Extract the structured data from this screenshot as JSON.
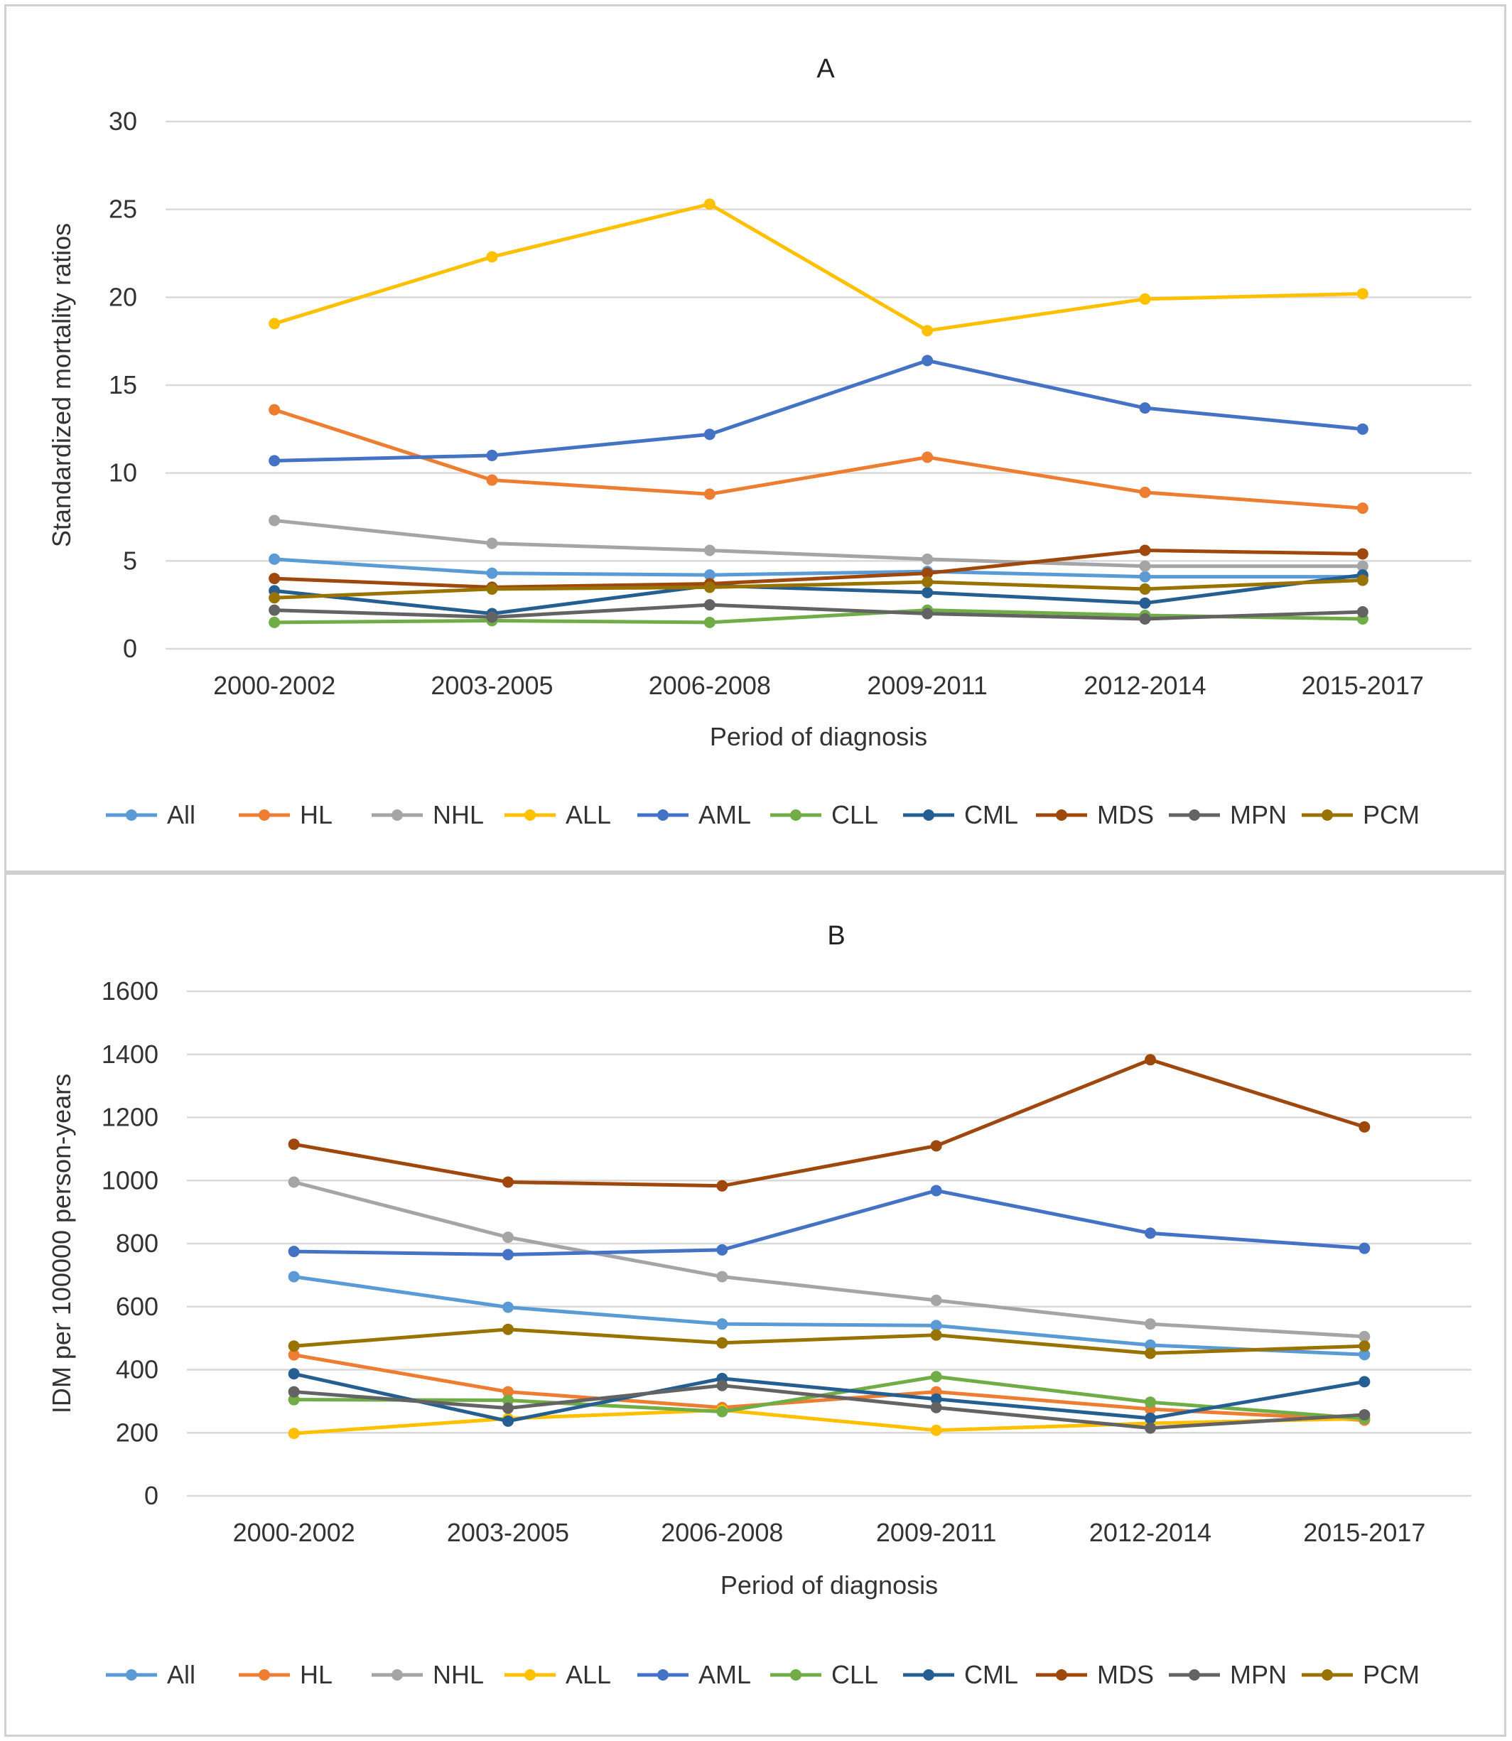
{
  "charts": [
    {
      "id": "A",
      "type": "line",
      "title": "A",
      "xlabel": "Period of diagnosis",
      "ylabel": "Standardized mortality ratios",
      "categories": [
        "2000-2002",
        "2003-2005",
        "2006-2008",
        "2009-2011",
        "2012-2014",
        "2015-2017"
      ],
      "ylim": [
        0,
        30
      ],
      "yticks": [
        0,
        5,
        10,
        15,
        20,
        25,
        30
      ],
      "grid": true,
      "legend_position": "bottom",
      "series": [
        {
          "name": "All",
          "color": "#5B9BD5",
          "values": [
            5.1,
            4.3,
            4.2,
            4.4,
            4.1,
            4.1
          ]
        },
        {
          "name": "HL",
          "color": "#ED7D31",
          "values": [
            13.6,
            9.6,
            8.8,
            10.9,
            8.9,
            8.0
          ]
        },
        {
          "name": "NHL",
          "color": "#A5A5A5",
          "values": [
            7.3,
            6.0,
            5.6,
            5.1,
            4.7,
            4.7
          ]
        },
        {
          "name": "ALL",
          "color": "#FFC000",
          "values": [
            18.5,
            22.3,
            25.3,
            18.1,
            19.9,
            20.2
          ]
        },
        {
          "name": "AML",
          "color": "#4472C4",
          "values": [
            10.7,
            11.0,
            12.2,
            16.4,
            13.7,
            12.5
          ]
        },
        {
          "name": "CLL",
          "color": "#70AD47",
          "values": [
            1.5,
            1.6,
            1.5,
            2.2,
            1.9,
            1.7
          ]
        },
        {
          "name": "CML",
          "color": "#255E91",
          "values": [
            3.3,
            2.0,
            3.6,
            3.2,
            2.6,
            4.2
          ]
        },
        {
          "name": "MDS",
          "color": "#9E480E",
          "values": [
            4.0,
            3.5,
            3.7,
            4.3,
            5.6,
            5.4
          ]
        },
        {
          "name": "MPN",
          "color": "#636363",
          "values": [
            2.2,
            1.8,
            2.5,
            2.0,
            1.7,
            2.1
          ]
        },
        {
          "name": "PCM",
          "color": "#997300",
          "values": [
            2.9,
            3.4,
            3.5,
            3.8,
            3.4,
            3.9
          ]
        }
      ]
    },
    {
      "id": "B",
      "type": "line",
      "title": "B",
      "xlabel": "Period of diagnosis",
      "ylabel": "IDM per 100000 person-years",
      "categories": [
        "2000-2002",
        "2003-2005",
        "2006-2008",
        "2009-2011",
        "2012-2014",
        "2015-2017"
      ],
      "ylim": [
        0,
        1600
      ],
      "yticks": [
        0,
        200,
        400,
        600,
        800,
        1000,
        1200,
        1400,
        1600
      ],
      "grid": true,
      "legend_position": "bottom",
      "series": [
        {
          "name": "All",
          "color": "#5B9BD5",
          "values": [
            695,
            598,
            545,
            540,
            478,
            448
          ]
        },
        {
          "name": "HL",
          "color": "#ED7D31",
          "values": [
            447,
            330,
            280,
            330,
            275,
            240
          ]
        },
        {
          "name": "NHL",
          "color": "#A5A5A5",
          "values": [
            995,
            820,
            695,
            620,
            545,
            505
          ]
        },
        {
          "name": "ALL",
          "color": "#FFC000",
          "values": [
            198,
            245,
            272,
            208,
            230,
            245
          ]
        },
        {
          "name": "AML",
          "color": "#4472C4",
          "values": [
            775,
            765,
            780,
            968,
            833,
            785
          ]
        },
        {
          "name": "CLL",
          "color": "#70AD47",
          "values": [
            305,
            303,
            267,
            378,
            297,
            245
          ]
        },
        {
          "name": "CML",
          "color": "#255E91",
          "values": [
            387,
            237,
            372,
            307,
            246,
            362
          ]
        },
        {
          "name": "MDS",
          "color": "#9E480E",
          "values": [
            1115,
            995,
            983,
            1110,
            1383,
            1170
          ]
        },
        {
          "name": "MPN",
          "color": "#636363",
          "values": [
            330,
            278,
            350,
            280,
            215,
            257
          ]
        },
        {
          "name": "PCM",
          "color": "#997300",
          "values": [
            475,
            528,
            485,
            510,
            452,
            475
          ]
        }
      ]
    }
  ]
}
